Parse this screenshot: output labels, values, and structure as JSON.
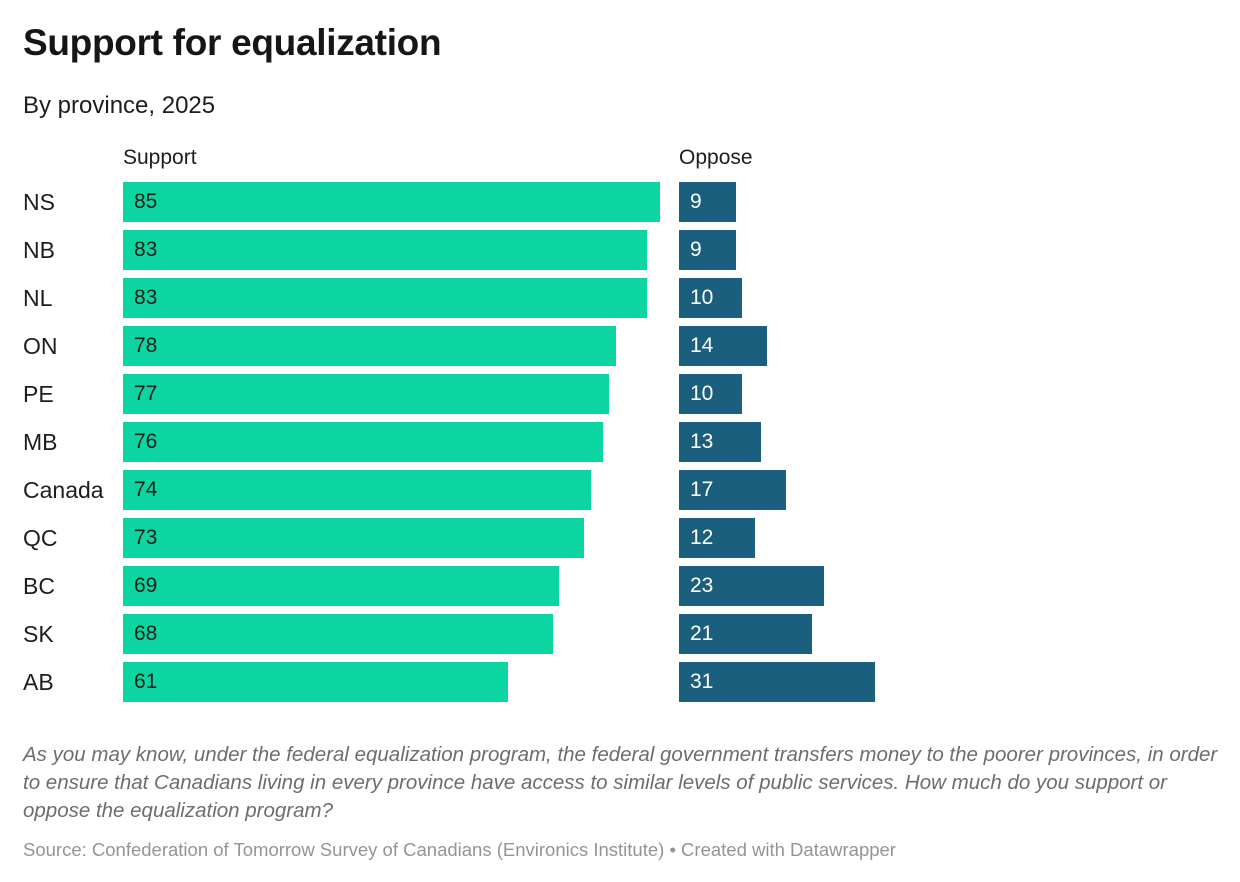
{
  "header": {
    "title": "Support for equalization",
    "subtitle": "By province, 2025"
  },
  "columns": {
    "support_label": "Support",
    "oppose_label": "Oppose"
  },
  "chart_data": {
    "type": "bar",
    "orientation": "horizontal",
    "title": "Support for equalization",
    "subtitle": "By province, 2025",
    "categories": [
      "NS",
      "NB",
      "NL",
      "ON",
      "PE",
      "MB",
      "Canada",
      "QC",
      "BC",
      "SK",
      "AB"
    ],
    "series": [
      {
        "name": "Support",
        "color": "#0bd5a1",
        "values": [
          85,
          83,
          83,
          78,
          77,
          76,
          74,
          73,
          69,
          68,
          61
        ]
      },
      {
        "name": "Oppose",
        "color": "#1a5f7d",
        "values": [
          9,
          9,
          10,
          14,
          10,
          13,
          17,
          12,
          23,
          21,
          31
        ]
      }
    ],
    "value_labels_inside_bars": true,
    "value_range": [
      0,
      85
    ],
    "legend_position": "column-headers",
    "grid": false,
    "support_text_color": "#1d1d1d",
    "oppose_text_color": "#ffffff"
  },
  "footer": {
    "note": "As you may know, under the federal equalization program, the federal government transfers money to the poorer provinces, in order to ensure that Canadians living in every province have access to similar levels of public services. How much do you support or oppose the equalization program?",
    "source": "Source: Confederation of Tomorrow Survey of Canadians (Environics Institute) • Created with Datawrapper"
  }
}
